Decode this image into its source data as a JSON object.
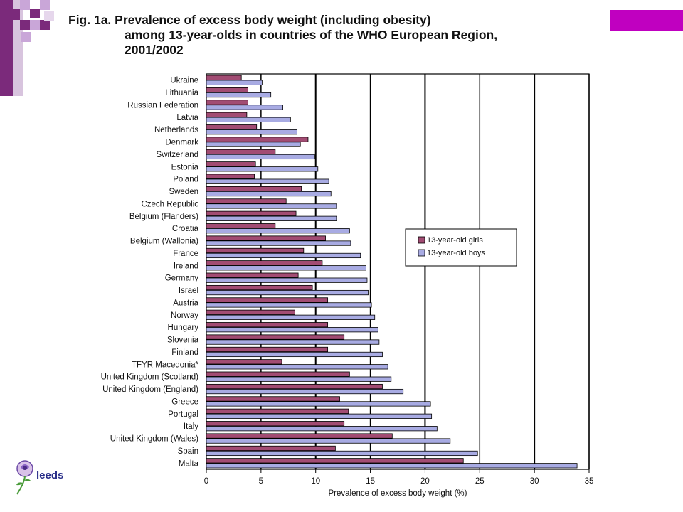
{
  "theme": {
    "accent": "#c000c0",
    "deco_purple": "#7b2a7b",
    "girls_color": "#a24c73",
    "boys_color": "#a8abe3"
  },
  "figure": {
    "title_line1": "Fig. 1a. Prevalence of excess body weight (including obesity)",
    "title_line2": "among 13-year-olds in countries of the WHO European Region,",
    "title_line3": "2001/2002"
  },
  "logo": {
    "text": "leeds",
    "icon": "rose-logo-icon"
  },
  "chart_data": {
    "type": "bar",
    "orientation": "horizontal",
    "title": "Fig. 1a. Prevalence of excess body weight (including obesity) among 13-year-olds in countries of the WHO European Region, 2001/2002",
    "xlabel": "Prevalence of excess body weight (%)",
    "ylabel": "",
    "xlim": [
      0,
      35
    ],
    "xticks": [
      0,
      5,
      10,
      15,
      20,
      25,
      30,
      35
    ],
    "grid": "vertical",
    "legend_placement": "right-middle",
    "categories": [
      "Ukraine",
      "Lithuania",
      "Russian Federation",
      "Latvia",
      "Netherlands",
      "Denmark",
      "Switzerland",
      "Estonia",
      "Poland",
      "Sweden",
      "Czech Republic",
      "Belgium (Flanders)",
      "Croatia",
      "Belgium (Wallonia)",
      "France",
      "Ireland",
      "Germany",
      "Israel",
      "Austria",
      "Norway",
      "Hungary",
      "Slovenia",
      "Finland",
      "TFYR Macedonia*",
      "United Kingdom (Scotland)",
      "United Kingdom (England)",
      "Greece",
      "Portugal",
      "Italy",
      "United Kingdom (Wales)",
      "Spain",
      "Malta"
    ],
    "series": [
      {
        "name": "13-year-old girls",
        "color": "#a24c73",
        "values": [
          3.2,
          3.8,
          3.8,
          3.7,
          4.6,
          9.3,
          6.3,
          4.5,
          4.4,
          8.7,
          7.3,
          8.2,
          6.3,
          10.9,
          8.9,
          10.6,
          8.4,
          9.7,
          11.1,
          8.1,
          11.1,
          12.6,
          11.1,
          6.9,
          13.1,
          16.1,
          12.2,
          13.0,
          12.6,
          17.0,
          11.8,
          23.5
        ]
      },
      {
        "name": "13-year-old boys",
        "color": "#a8abe3",
        "values": [
          5.1,
          5.9,
          7.0,
          7.7,
          8.3,
          8.6,
          9.9,
          10.2,
          11.2,
          11.4,
          11.9,
          11.9,
          13.1,
          13.2,
          14.1,
          14.6,
          14.7,
          14.8,
          15.1,
          15.4,
          15.7,
          15.8,
          16.1,
          16.6,
          16.9,
          18.0,
          20.5,
          20.6,
          21.1,
          22.3,
          24.8,
          33.9
        ]
      }
    ]
  }
}
